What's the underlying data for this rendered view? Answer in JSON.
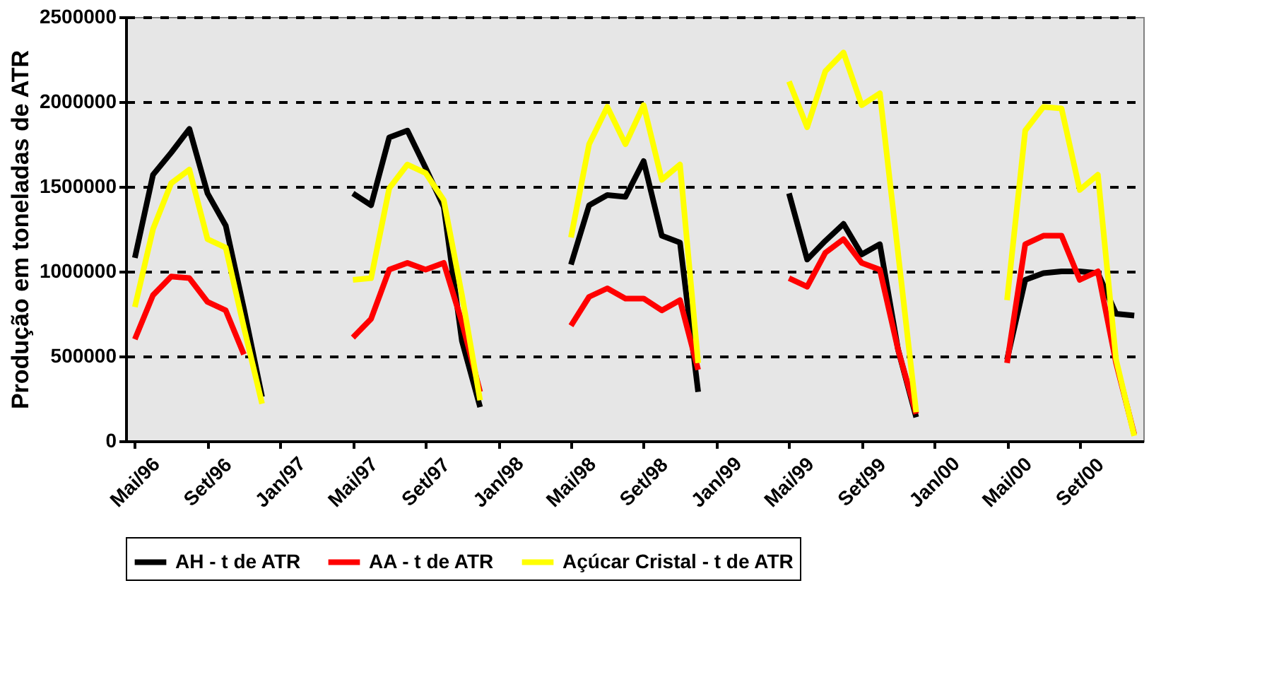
{
  "chart_data": {
    "type": "line",
    "ylabel": "Produção em toneladas de ATR",
    "categories": [
      "Mai/96",
      null,
      null,
      null,
      "Set/96",
      null,
      null,
      null,
      "Jan/97",
      null,
      null,
      null,
      "Mai/97",
      null,
      null,
      null,
      "Set/97",
      null,
      null,
      null,
      "Jan/98",
      null,
      null,
      null,
      "Mai/98",
      null,
      null,
      null,
      "Set/98",
      null,
      null,
      null,
      "Jan/99",
      null,
      null,
      null,
      "Mai/99",
      null,
      null,
      null,
      "Set/99",
      null,
      null,
      null,
      "Jan/00",
      null,
      null,
      null,
      "Mai/00",
      null,
      null,
      null,
      "Set/00",
      null,
      null,
      null
    ],
    "series": [
      {
        "name": "AH - t de ATR",
        "color": "#000000",
        "values": [
          1080000,
          1570000,
          1700000,
          1840000,
          1460000,
          1270000,
          780000,
          260000,
          null,
          null,
          null,
          null,
          1460000,
          1390000,
          1790000,
          1830000,
          1610000,
          1380000,
          590000,
          200000,
          null,
          null,
          null,
          null,
          1040000,
          1390000,
          1450000,
          1440000,
          1650000,
          1210000,
          1170000,
          290000,
          null,
          null,
          null,
          null,
          1460000,
          1070000,
          1180000,
          1280000,
          1100000,
          1160000,
          540000,
          140000,
          null,
          null,
          null,
          null,
          480000,
          950000,
          990000,
          1000000,
          1000000,
          990000,
          750000,
          740000
        ]
      },
      {
        "name": "AA - t de ATR",
        "color": "#ff0000",
        "values": [
          600000,
          860000,
          970000,
          960000,
          820000,
          770000,
          510000,
          null,
          null,
          null,
          null,
          null,
          610000,
          720000,
          1010000,
          1050000,
          1010000,
          1050000,
          700000,
          290000,
          null,
          null,
          null,
          null,
          680000,
          850000,
          900000,
          840000,
          840000,
          770000,
          830000,
          420000,
          null,
          null,
          null,
          null,
          960000,
          910000,
          1110000,
          1190000,
          1050000,
          1010000,
          540000,
          160000,
          null,
          null,
          null,
          null,
          460000,
          1160000,
          1210000,
          1210000,
          950000,
          1000000,
          460000,
          40000
        ]
      },
      {
        "name": "Açúcar Cristal - t de ATR",
        "color": "#ffff00",
        "values": [
          790000,
          1250000,
          1520000,
          1600000,
          1190000,
          1140000,
          670000,
          220000,
          null,
          null,
          null,
          null,
          950000,
          960000,
          1490000,
          1630000,
          1580000,
          1420000,
          860000,
          240000,
          null,
          null,
          null,
          null,
          1200000,
          1750000,
          1970000,
          1750000,
          1980000,
          1540000,
          1630000,
          460000,
          null,
          null,
          null,
          null,
          2120000,
          1850000,
          2180000,
          2290000,
          1980000,
          2050000,
          1110000,
          170000,
          null,
          null,
          null,
          null,
          830000,
          1830000,
          1970000,
          1960000,
          1480000,
          1570000,
          480000,
          30000
        ]
      }
    ],
    "ylim": [
      0,
      2500000
    ],
    "yticks": [
      0,
      500000,
      1000000,
      1500000,
      2000000,
      2500000
    ],
    "grid": "y",
    "legend": "bottom",
    "line_style": "solid",
    "marker": "none"
  }
}
